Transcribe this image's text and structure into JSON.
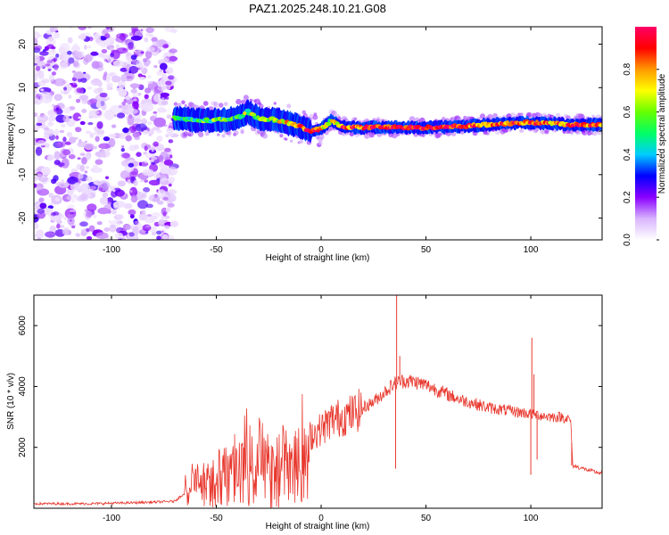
{
  "chart_data": [
    {
      "type": "heatmap",
      "title": "PAZ1.2025.248.10.21.G08",
      "xlabel": "Height of straight line (km)",
      "ylabel": "Frequency (Hz)",
      "xlim": [
        -137,
        134
      ],
      "ylim": [
        -25,
        24
      ],
      "xticks": [
        -100,
        -50,
        0,
        50,
        100
      ],
      "yticks": [
        -20,
        -10,
        0,
        10,
        20
      ],
      "noise_region_x": [
        -137,
        -70
      ],
      "signal_track": {
        "x": [
          -70,
          -60,
          -50,
          -40,
          -35,
          -30,
          -20,
          -10,
          -5,
          0,
          5,
          10,
          20,
          30,
          40,
          50,
          60,
          70,
          80,
          90,
          100,
          110,
          120,
          134
        ],
        "freq": [
          3.0,
          2.5,
          2.5,
          3.0,
          4.5,
          3.0,
          2.5,
          1.0,
          0.0,
          0.5,
          2.5,
          1.0,
          0.8,
          1.0,
          0.8,
          0.8,
          1.0,
          1.2,
          1.5,
          1.8,
          2.0,
          1.8,
          1.5,
          1.5
        ],
        "amplitude": [
          0.45,
          0.5,
          0.55,
          0.5,
          0.6,
          0.6,
          0.65,
          0.8,
          0.95,
          0.8,
          0.6,
          0.85,
          0.9,
          0.9,
          0.95,
          0.95,
          0.9,
          0.9,
          0.85,
          0.85,
          0.9,
          0.8,
          0.85,
          0.85
        ]
      },
      "colorbar": {
        "label": "Normalized spectral amplitude",
        "ticks": [
          "0.0",
          "0.2",
          "0.4",
          "0.6",
          "0.8"
        ],
        "range": [
          0,
          1
        ],
        "colors": [
          "#ffffff",
          "#d8b4fe",
          "#8a00ff",
          "#0000ff",
          "#00ccff",
          "#00ff66",
          "#66ff00",
          "#ffff00",
          "#ff9900",
          "#ff0000",
          "#ff0066"
        ]
      }
    },
    {
      "type": "line",
      "title": "",
      "xlabel": "Height of straight line (km)",
      "ylabel": "SNR (10 * v/v)",
      "xlim": [
        -137,
        134
      ],
      "ylim": [
        0,
        7000
      ],
      "xticks": [
        -100,
        -50,
        0,
        50,
        100
      ],
      "yticks": [
        2000,
        4000,
        6000
      ],
      "color": "#e8392f",
      "series": [
        {
          "name": "SNR",
          "x": [
            -137,
            -110,
            -90,
            -80,
            -70,
            -65,
            -60,
            -55,
            -50,
            -45,
            -40,
            -35,
            -30,
            -25,
            -20,
            -15,
            -10,
            -5,
            0,
            5,
            10,
            15,
            20,
            25,
            30,
            35,
            40,
            45,
            50,
            55,
            60,
            65,
            70,
            75,
            80,
            85,
            90,
            95,
            100,
            105,
            110,
            115,
            119,
            120,
            125,
            130,
            134
          ],
          "y": [
            150,
            150,
            180,
            200,
            230,
            500,
            900,
            1000,
            1100,
            1200,
            1500,
            1600,
            1500,
            1700,
            1600,
            1700,
            1800,
            2400,
            2600,
            2900,
            3000,
            3100,
            3300,
            3500,
            3800,
            4100,
            4200,
            4150,
            4050,
            3900,
            3750,
            3600,
            3500,
            3400,
            3300,
            3250,
            3200,
            3150,
            3100,
            3050,
            3000,
            3000,
            2900,
            1400,
            1300,
            1200,
            1150
          ]
        }
      ],
      "spikes": [
        {
          "x": 36.0,
          "y": 7000
        },
        {
          "x": 35.5,
          "y": 1300
        },
        {
          "x": 37.5,
          "y": 5000
        },
        {
          "x": 100.5,
          "y": 5600
        },
        {
          "x": 100.0,
          "y": 1100
        },
        {
          "x": 101.5,
          "y": 4400
        },
        {
          "x": 103.0,
          "y": 1600
        },
        {
          "x": 119.5,
          "y": 1400
        }
      ],
      "grid": false
    }
  ]
}
